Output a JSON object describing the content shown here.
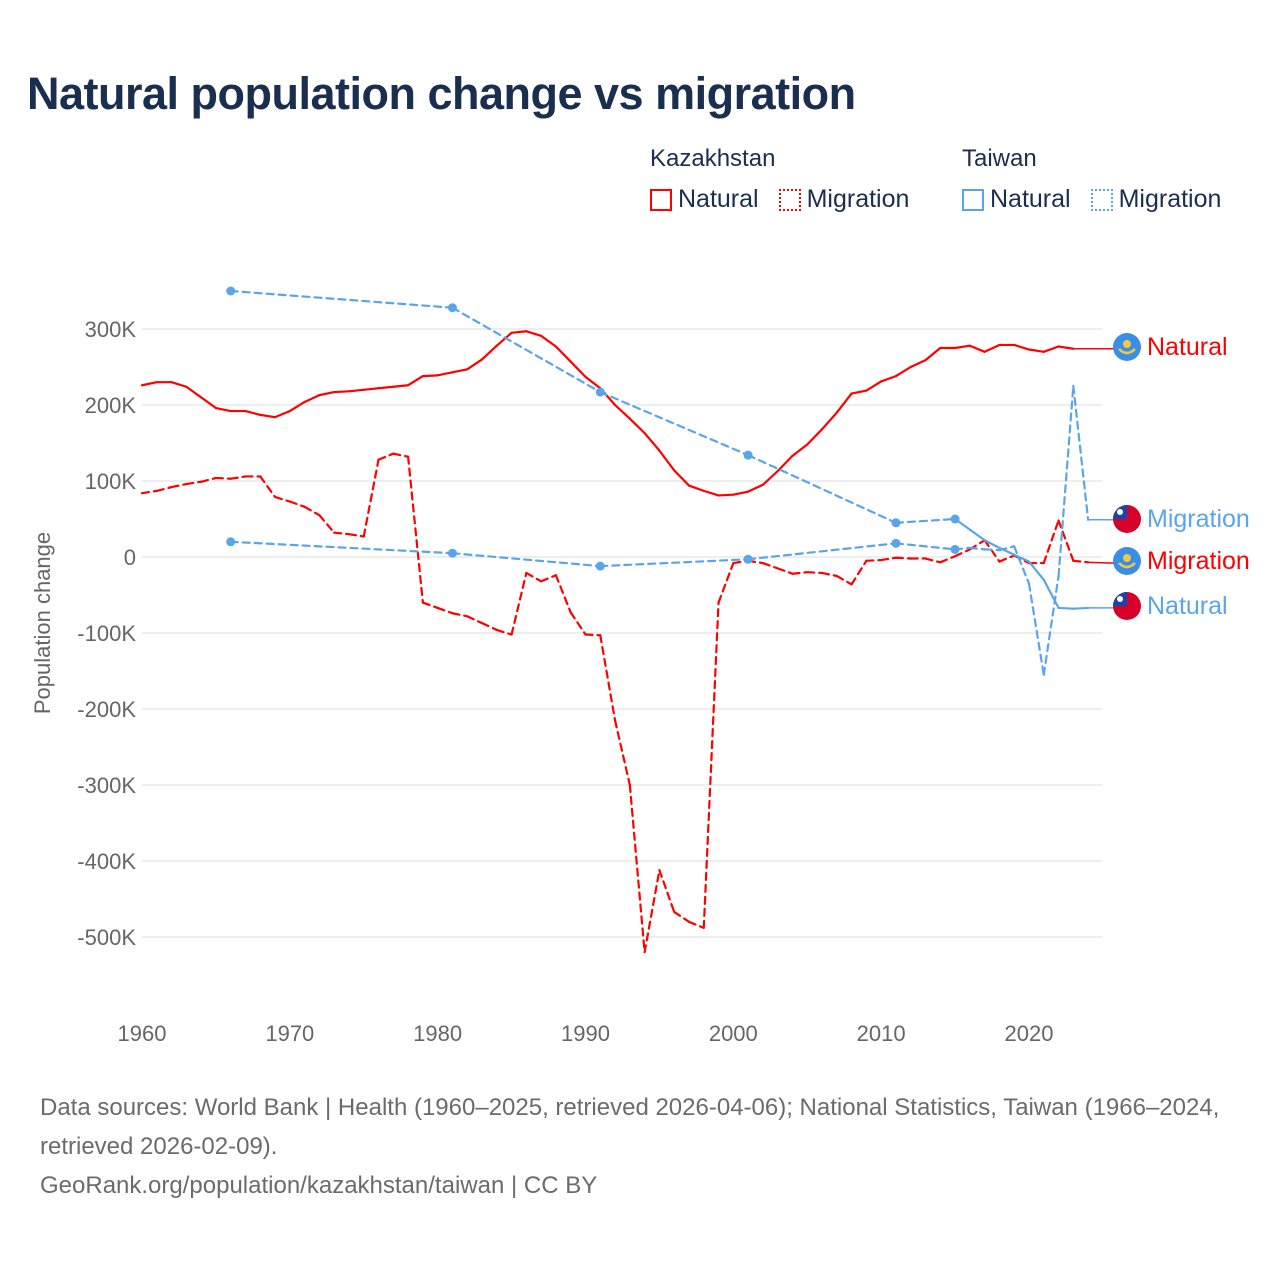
{
  "title": "Natural population change vs migration",
  "legend": [
    {
      "country": "Kazakhstan",
      "color": "#ff0000",
      "items": [
        "Natural",
        "Migration"
      ]
    },
    {
      "country": "Taiwan",
      "color": "#5aa5e9",
      "items": [
        "Natural",
        "Migration"
      ]
    }
  ],
  "footer": {
    "sources": "Data sources: World Bank | Health (1960–2025, retrieved 2026-04-06); National Statistics, Taiwan (1966–2024, retrieved 2026-02-09).",
    "credit": "GeoRank.org/population/kazakhstan/taiwan | CC BY"
  },
  "chart_data": {
    "type": "line",
    "title": "Natural population change vs migration",
    "xlabel": "",
    "ylabel": "Population change",
    "xlim": [
      1960,
      2025
    ],
    "ylim": [
      -500000,
      300000
    ],
    "xticks": [
      1960,
      1970,
      1980,
      1990,
      2000,
      2010,
      2020
    ],
    "yticks": [
      {
        "v": 300000,
        "label": "300K"
      },
      {
        "v": 200000,
        "label": "200K"
      },
      {
        "v": 100000,
        "label": "100K"
      },
      {
        "v": 0,
        "label": "0"
      },
      {
        "v": -100000,
        "label": "-100K"
      },
      {
        "v": -200000,
        "label": "-200K"
      },
      {
        "v": -300000,
        "label": "-300K"
      },
      {
        "v": -400000,
        "label": "-400K"
      },
      {
        "v": -500000,
        "label": "-500K"
      }
    ],
    "grid": true,
    "series": [
      {
        "name": "Kazakhstan Natural",
        "label": "Natural",
        "country": "Kazakhstan",
        "flag": "kazakhstan",
        "color": "#ff0000",
        "dashed": false,
        "x": [
          1960,
          1961,
          1962,
          1963,
          1964,
          1965,
          1966,
          1967,
          1968,
          1969,
          1970,
          1971,
          1972,
          1973,
          1974,
          1975,
          1976,
          1977,
          1978,
          1979,
          1980,
          1981,
          1982,
          1983,
          1984,
          1985,
          1986,
          1987,
          1988,
          1989,
          1990,
          1991,
          1992,
          1993,
          1994,
          1995,
          1996,
          1997,
          1998,
          1999,
          2000,
          2001,
          2002,
          2003,
          2004,
          2005,
          2006,
          2007,
          2008,
          2009,
          2010,
          2011,
          2012,
          2013,
          2014,
          2015,
          2016,
          2017,
          2018,
          2019,
          2020,
          2021,
          2022,
          2023,
          2025
        ],
        "y": [
          226000,
          230000,
          230000,
          224000,
          210000,
          196000,
          192000,
          192000,
          187000,
          184000,
          192000,
          204000,
          213000,
          217000,
          218000,
          220000,
          222000,
          224000,
          226000,
          238000,
          239000,
          243000,
          247000,
          260000,
          278000,
          295000,
          297000,
          291000,
          277000,
          257000,
          237000,
          222000,
          200000,
          182000,
          163000,
          140000,
          114000,
          94000,
          87000,
          81000,
          82000,
          86000,
          95000,
          113000,
          133000,
          148000,
          168000,
          190000,
          215000,
          219000,
          231000,
          238000,
          250000,
          259000,
          275000,
          275000,
          278000,
          270000,
          279000,
          279000,
          273000,
          270000,
          277000,
          274000,
          274000
        ]
      },
      {
        "name": "Kazakhstan Migration",
        "label": "Migration",
        "country": "Kazakhstan",
        "flag": "kazakhstan",
        "color": "#ff0000",
        "dashed": true,
        "x": [
          1960,
          1961,
          1962,
          1963,
          1964,
          1965,
          1966,
          1967,
          1968,
          1969,
          1970,
          1971,
          1972,
          1973,
          1974,
          1975,
          1976,
          1977,
          1978,
          1979,
          1980,
          1981,
          1982,
          1983,
          1984,
          1985,
          1986,
          1987,
          1988,
          1989,
          1990,
          1991,
          1992,
          1993,
          1994,
          1995,
          1996,
          1997,
          1998,
          1999,
          2000,
          2001,
          2002,
          2003,
          2004,
          2005,
          2006,
          2007,
          2008,
          2009,
          2010,
          2011,
          2012,
          2013,
          2014,
          2015,
          2016,
          2017,
          2018,
          2019,
          2020,
          2021,
          2022,
          2023,
          2024,
          2025
        ],
        "y": [
          84000,
          87000,
          92000,
          96000,
          99000,
          104000,
          103000,
          106000,
          106000,
          79000,
          73000,
          66000,
          55000,
          32000,
          30000,
          27000,
          128000,
          136000,
          132000,
          -60000,
          -67000,
          -74000,
          -78000,
          -87000,
          -96000,
          -102000,
          -21000,
          -32000,
          -24000,
          -73000,
          -102000,
          -103000,
          -215000,
          -300000,
          -520000,
          -412000,
          -467000,
          -480000,
          -488000,
          -60000,
          -8000,
          -5000,
          -8000,
          -15000,
          -22000,
          -20000,
          -21000,
          -25000,
          -36000,
          -5000,
          -4000,
          -1000,
          -2000,
          -2000,
          -7000,
          1000,
          10000,
          22000,
          -6000,
          2000,
          -8000,
          -8000,
          48000,
          -5000,
          -7000,
          -8000
        ]
      },
      {
        "name": "Taiwan Natural",
        "label": "Natural",
        "country": "Taiwan",
        "flag": "taiwan",
        "color": "#5aa5e9",
        "dashed": false,
        "x": [
          1966,
          1981,
          1991,
          2001,
          2011,
          2015,
          2016,
          2017,
          2018,
          2019,
          2020,
          2021,
          2022,
          2023,
          2024,
          2025
        ],
        "y": [
          350000,
          328000,
          217000,
          134000,
          45000,
          50000,
          36000,
          22000,
          12000,
          3000,
          -6000,
          -30000,
          -67000,
          -68000,
          -67000,
          -67000
        ]
      },
      {
        "name": "Taiwan Migration",
        "label": "Migration",
        "country": "Taiwan",
        "flag": "taiwan",
        "color": "#5aa5e9",
        "dashed": true,
        "x": [
          1966,
          1981,
          1991,
          2001,
          2011,
          2015,
          2016,
          2017,
          2018,
          2019,
          2020,
          2021,
          2022,
          2023,
          2024,
          2025
        ],
        "y": [
          20000,
          5000,
          -12000,
          -3000,
          18000,
          10000,
          12000,
          10000,
          9000,
          14000,
          -35000,
          -155000,
          -25000,
          225000,
          49000,
          49000
        ]
      }
    ],
    "end_labels_order": [
      "Kazakhstan Natural",
      "Taiwan Migration",
      "Kazakhstan Migration",
      "Taiwan Natural"
    ]
  }
}
